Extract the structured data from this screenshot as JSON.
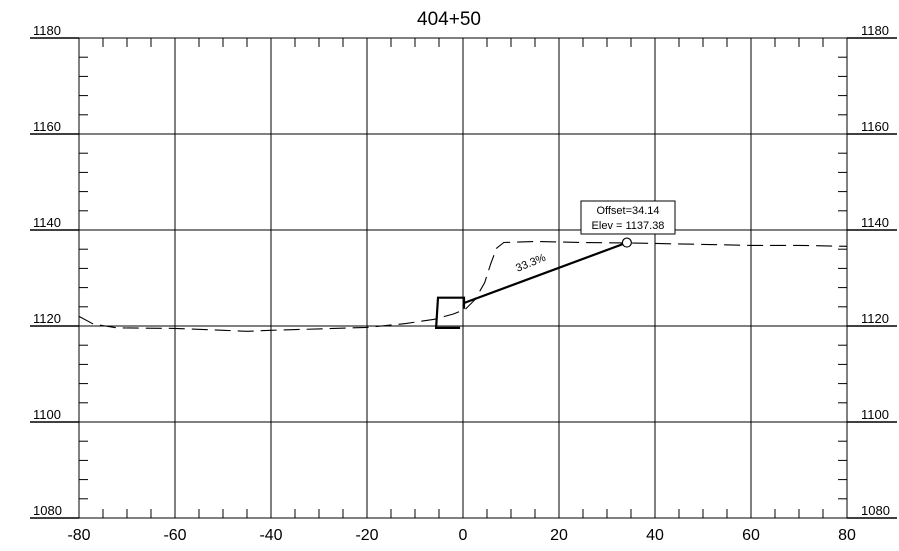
{
  "chart_data": {
    "type": "line",
    "title": "404+50",
    "xlabel": "",
    "ylabel": "",
    "xlim": [
      -80,
      80
    ],
    "ylim": [
      1080,
      1180
    ],
    "x_major_ticks": [
      -80,
      -60,
      -40,
      -20,
      0,
      20,
      40,
      60,
      80
    ],
    "x_minor_step": 5,
    "y_major_ticks": [
      1080,
      1100,
      1120,
      1140,
      1160,
      1180
    ],
    "y_minor_step": 4,
    "grid": true,
    "series": [
      {
        "style": "dashed",
        "points": [
          [
            -80,
            1122
          ],
          [
            -77,
            1120.4
          ],
          [
            -72,
            1119.6
          ],
          [
            -60,
            1119.5
          ],
          [
            -50,
            1119.1
          ],
          [
            -45,
            1118.9
          ],
          [
            -40,
            1119.1
          ],
          [
            -30,
            1119.4
          ],
          [
            -20,
            1119.7
          ],
          [
            -12,
            1120.5
          ],
          [
            -6,
            1121.4
          ],
          [
            -2,
            1122.5
          ],
          [
            0.5,
            1123.5
          ],
          [
            2.5,
            1125.5
          ],
          [
            4.5,
            1129
          ],
          [
            5.8,
            1133
          ],
          [
            7,
            1136.2
          ],
          [
            8.5,
            1137.4
          ],
          [
            15,
            1137.6
          ],
          [
            25,
            1137.4
          ],
          [
            35,
            1137.3
          ],
          [
            50,
            1137.0
          ],
          [
            60,
            1136.8
          ],
          [
            70,
            1136.8
          ],
          [
            80,
            1136.6
          ]
        ]
      },
      {
        "style": "solid",
        "points": [
          [
            -5.6,
            1119.6
          ],
          [
            -0.6,
            1119.6
          ],
          [
            -0.6,
            1119.6
          ],
          [
            -5.6,
            1119.6
          ],
          [
            -5.2,
            1125.9
          ],
          [
            0.2,
            1125.9
          ],
          [
            0.2,
            1123.6
          ]
        ]
      },
      {
        "style": "solid",
        "points": [
          [
            0.2,
            1124.8
          ],
          [
            34.14,
            1137.38
          ]
        ]
      }
    ],
    "point_marker": {
      "x": 34.14,
      "y": 1137.38
    },
    "annotations": {
      "offset_label": "Offset=34.14",
      "elev_label": "Elev = 1137.38",
      "slope_label": "33.3%"
    }
  }
}
